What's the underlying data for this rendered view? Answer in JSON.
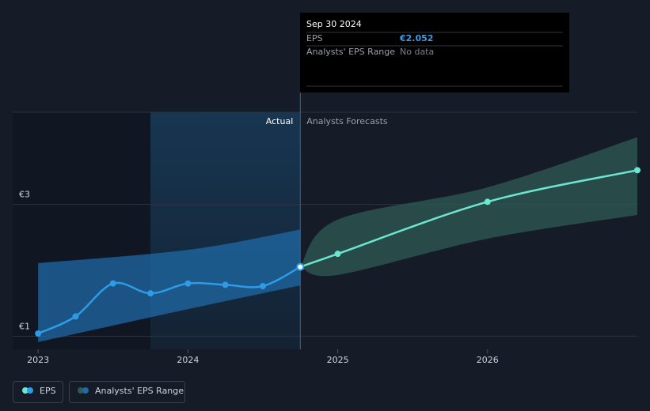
{
  "chart_data": {
    "type": "line",
    "xlim": [
      2022.83,
      2027.0
    ],
    "xticks": [
      2023,
      2024,
      2025,
      2026
    ],
    "ylim": [
      0.8,
      4.4
    ],
    "yticks": [
      {
        "value": 1,
        "label": "€1"
      },
      {
        "value": 3,
        "label": "€3"
      }
    ],
    "grid": true,
    "annotations": {
      "actual": "Actual",
      "forecast": "Analysts Forecasts"
    },
    "series": [
      {
        "name": "EPS",
        "color": "#2d9be5",
        "x": [
          2023.0,
          2023.25,
          2023.5,
          2023.75,
          2024.0,
          2024.25,
          2024.5,
          2024.75
        ],
        "values": [
          1.04,
          1.3,
          1.8,
          1.65,
          1.8,
          1.78,
          1.76,
          2.052
        ],
        "forecast": {
          "color": "#6be6d0",
          "x": [
            2024.75,
            2025.0,
            2026.0,
            2027.0
          ],
          "values": [
            2.052,
            2.25,
            3.04,
            3.52
          ]
        }
      },
      {
        "name": "Analysts' EPS Range",
        "color": "#1f6aa5",
        "x": [
          2023.0,
          2024.0,
          2024.75
        ],
        "low": [
          0.91,
          1.41,
          1.77
        ],
        "high": [
          2.11,
          2.31,
          2.62
        ],
        "forecast": {
          "color": "#2f5b54",
          "x": [
            2024.75,
            2025.0,
            2026.0,
            2027.0
          ],
          "low": [
            2.052,
            1.93,
            2.48,
            2.84
          ],
          "high": [
            2.052,
            2.77,
            3.26,
            4.02
          ]
        }
      }
    ],
    "tooltip": {
      "date": "Sep 30 2024",
      "rows": [
        {
          "label": "EPS",
          "value": "€2.052"
        },
        {
          "label": "Analysts' EPS Range",
          "value": "No data"
        }
      ]
    }
  }
}
